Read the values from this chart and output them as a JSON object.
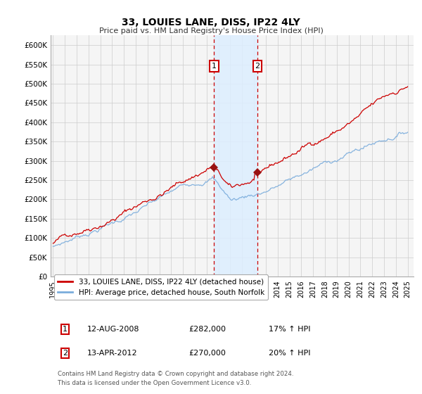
{
  "title": "33, LOUIES LANE, DISS, IP22 4LY",
  "subtitle": "Price paid vs. HM Land Registry's House Price Index (HPI)",
  "ylabel_ticks": [
    "£0",
    "£50K",
    "£100K",
    "£150K",
    "£200K",
    "£250K",
    "£300K",
    "£350K",
    "£400K",
    "£450K",
    "£500K",
    "£550K",
    "£600K"
  ],
  "ylim": [
    0,
    620000
  ],
  "ytick_values": [
    0,
    50000,
    100000,
    150000,
    200000,
    250000,
    300000,
    350000,
    400000,
    450000,
    500000,
    550000,
    600000
  ],
  "sale1_year": 2008.62,
  "sale1_price": 282000,
  "sale1_label": "1",
  "sale1_date_str": "12-AUG-2008",
  "sale1_hpi_pct": "17%",
  "sale2_year": 2012.29,
  "sale2_price": 270000,
  "sale2_label": "2",
  "sale2_date_str": "13-APR-2012",
  "sale2_hpi_pct": "20%",
  "legend_line1": "33, LOUIES LANE, DISS, IP22 4LY (detached house)",
  "legend_line2": "HPI: Average price, detached house, South Norfolk",
  "footnote1": "Contains HM Land Registry data © Crown copyright and database right 2024.",
  "footnote2": "This data is licensed under the Open Government Licence v3.0.",
  "line_color_red": "#cc0000",
  "line_color_blue": "#7aacdc",
  "shade_color": "#ddeeff",
  "marker_fill": "#991111",
  "grid_color": "#cccccc",
  "bg_color": "#f5f5f5"
}
